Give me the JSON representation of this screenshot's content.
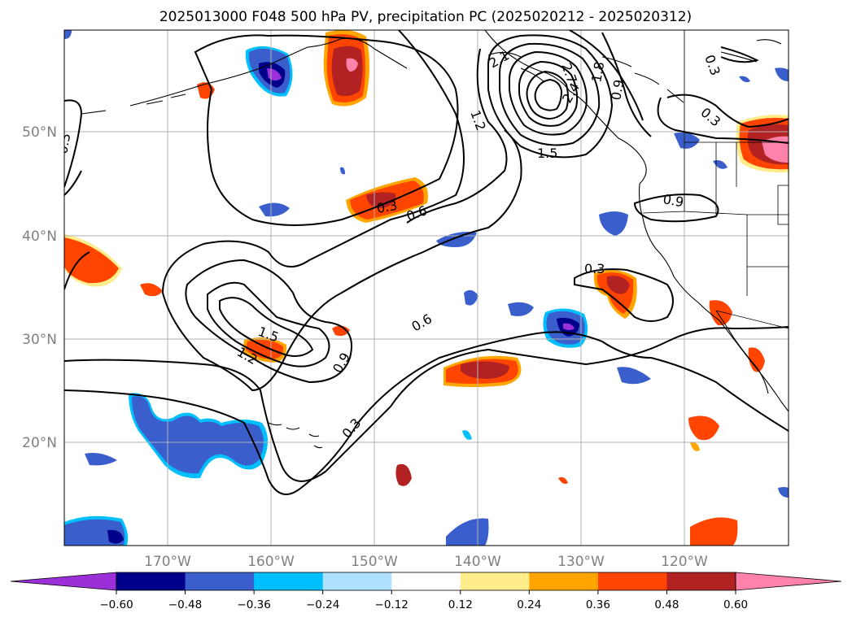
{
  "title": "2025013000 F048 500 hPa PV, precipitation PC (2025020212 - 2025020312)",
  "map": {
    "lon_labels": [
      "170°W",
      "160°W",
      "150°W",
      "140°W",
      "130°W",
      "120°W"
    ],
    "lat_labels": [
      "50°N",
      "40°N",
      "30°N",
      "20°N"
    ],
    "contour_labels": [
      "2.1",
      "1.8",
      "0.9",
      "0.3",
      "1.2",
      "1.5",
      "0.9",
      "0.3",
      "0.6",
      "0.3",
      "1.5",
      "1.2",
      "0.9",
      "0.6",
      "0.3",
      "0.3",
      "2.4",
      "2.7"
    ]
  },
  "colorbar": {
    "ticks": [
      "−0.60",
      "−0.48",
      "−0.36",
      "−0.24",
      "−0.12",
      "0.12",
      "0.24",
      "0.36",
      "0.48",
      "0.60"
    ],
    "colors": [
      "#9b30d9",
      "#00008b",
      "#3a5fcd",
      "#00bfff",
      "#b0e2ff",
      "#ffffff",
      "#ffec8b",
      "#ffa500",
      "#ff4500",
      "#b22222",
      "#ff82ab"
    ],
    "extend": "both"
  },
  "shading_colors": {
    "dark_purple": "#9b30d9",
    "navy": "#00008b",
    "royal_blue": "#3a5fcd",
    "sky_blue": "#00bfff",
    "light_blue": "#b0e2ff",
    "light_yellow": "#ffec8b",
    "orange": "#ffa500",
    "orange_red": "#ff4500",
    "firebrick": "#b22222",
    "pink": "#ff82ab"
  }
}
